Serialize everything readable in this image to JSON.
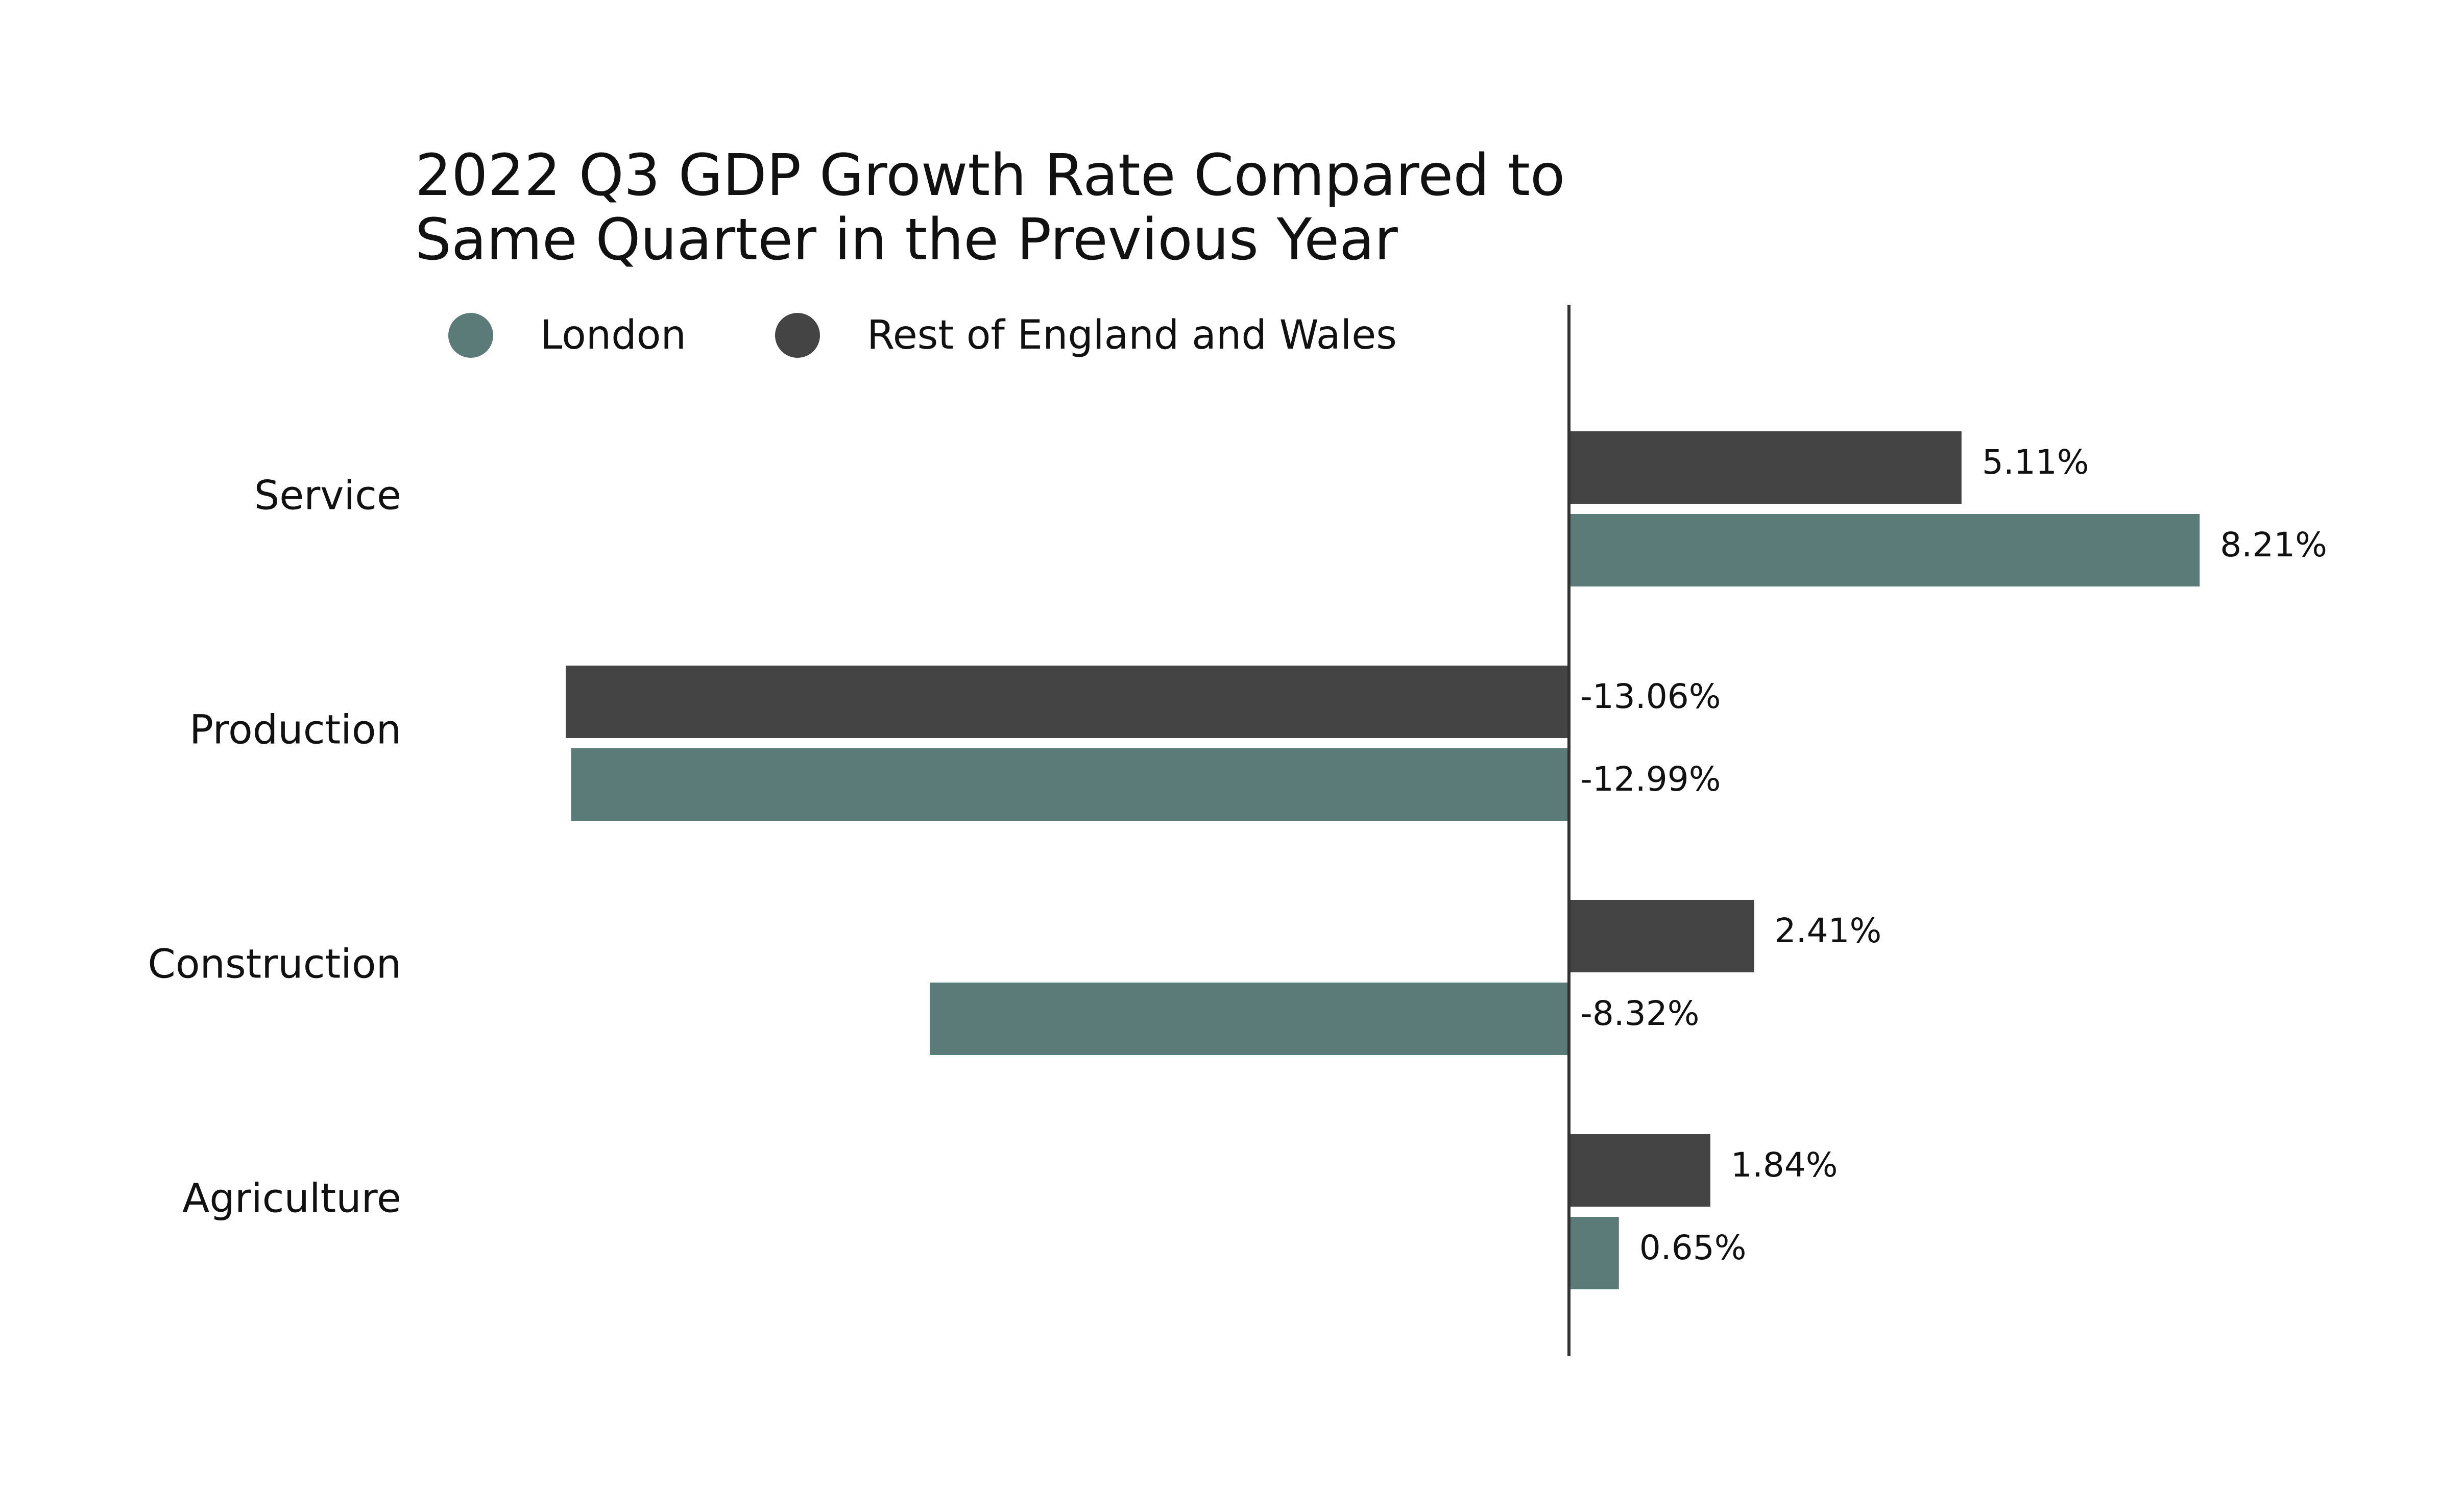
{
  "chart_data": {
    "type": "bar",
    "orientation": "horizontal",
    "title_lines": [
      "2022 Q3 GDP Growth Rate Compared to",
      "Same Quarter in the Previous Year"
    ],
    "categories": [
      "Service",
      "Production",
      "Construction",
      "Agriculture"
    ],
    "series": [
      {
        "name": "Rest of England and Wales",
        "color": "#444444",
        "values": [
          5.11,
          -13.06,
          2.41,
          1.84
        ],
        "labels": [
          "5.11%",
          "-13.06%",
          "2.41%",
          "1.84%"
        ]
      },
      {
        "name": "London",
        "color": "#5b7b79",
        "values": [
          8.21,
          -12.99,
          -8.32,
          0.65
        ],
        "labels": [
          "8.21%",
          "-12.99%",
          "-8.32%",
          "0.65%"
        ]
      }
    ],
    "legend": {
      "placement": "top-left",
      "items": [
        {
          "name": "London",
          "color": "#5b7b79"
        },
        {
          "name": "Rest of England and Wales",
          "color": "#444444"
        }
      ]
    },
    "xlim": [
      -13.06,
      8.21
    ],
    "xlabel": "",
    "ylabel": "",
    "grid": false,
    "zero_line": true
  }
}
